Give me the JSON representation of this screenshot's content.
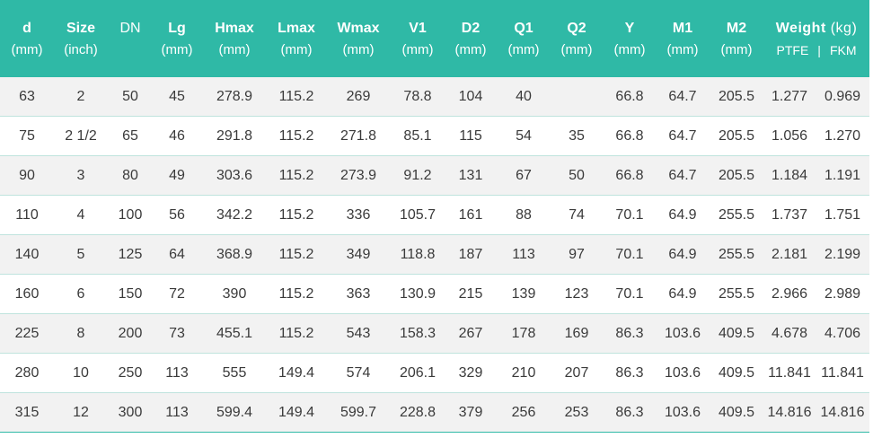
{
  "table": {
    "headers": [
      {
        "name": "d",
        "unit": "(mm)"
      },
      {
        "name": "Size",
        "unit": "(inch)"
      },
      {
        "name": "DN",
        "unit": ""
      },
      {
        "name": "Lg",
        "unit": "(mm)"
      },
      {
        "name": "Hmax",
        "unit": "(mm)"
      },
      {
        "name": "Lmax",
        "unit": "(mm)"
      },
      {
        "name": "Wmax",
        "unit": "(mm)"
      },
      {
        "name": "V1",
        "unit": "(mm)"
      },
      {
        "name": "D2",
        "unit": "(mm)"
      },
      {
        "name": "Q1",
        "unit": "(mm)"
      },
      {
        "name": "Q2",
        "unit": "(mm)"
      },
      {
        "name": "Y",
        "unit": "(mm)"
      },
      {
        "name": "M1",
        "unit": "(mm)"
      },
      {
        "name": "M2",
        "unit": "(mm)"
      }
    ],
    "weight_header": {
      "name": "Weight",
      "unit": "(kg)",
      "sub1": "PTFE",
      "separator": "|",
      "sub2": "FKM"
    },
    "rows": [
      [
        "63",
        "2",
        "50",
        "45",
        "278.9",
        "115.2",
        "269",
        "78.8",
        "104",
        "40",
        "",
        "66.8",
        "64.7",
        "205.5",
        "1.277",
        "0.969"
      ],
      [
        "75",
        "2 1/2",
        "65",
        "46",
        "291.8",
        "115.2",
        "271.8",
        "85.1",
        "115",
        "54",
        "35",
        "66.8",
        "64.7",
        "205.5",
        "1.056",
        "1.270"
      ],
      [
        "90",
        "3",
        "80",
        "49",
        "303.6",
        "115.2",
        "273.9",
        "91.2",
        "131",
        "67",
        "50",
        "66.8",
        "64.7",
        "205.5",
        "1.184",
        "1.191"
      ],
      [
        "110",
        "4",
        "100",
        "56",
        "342.2",
        "115.2",
        "336",
        "105.7",
        "161",
        "88",
        "74",
        "70.1",
        "64.9",
        "255.5",
        "1.737",
        "1.751"
      ],
      [
        "140",
        "5",
        "125",
        "64",
        "368.9",
        "115.2",
        "349",
        "118.8",
        "187",
        "113",
        "97",
        "70.1",
        "64.9",
        "255.5",
        "2.181",
        "2.199"
      ],
      [
        "160",
        "6",
        "150",
        "72",
        "390",
        "115.2",
        "363",
        "130.9",
        "215",
        "139",
        "123",
        "70.1",
        "64.9",
        "255.5",
        "2.966",
        "2.989"
      ],
      [
        "225",
        "8",
        "200",
        "73",
        "455.1",
        "115.2",
        "543",
        "158.3",
        "267",
        "178",
        "169",
        "86.3",
        "103.6",
        "409.5",
        "4.678",
        "4.706"
      ],
      [
        "280",
        "10",
        "250",
        "113",
        "555",
        "149.4",
        "574",
        "206.1",
        "329",
        "210",
        "207",
        "86.3",
        "103.6",
        "409.5",
        "11.841",
        "11.841"
      ],
      [
        "315",
        "12",
        "300",
        "113",
        "599.4",
        "149.4",
        "599.7",
        "228.8",
        "379",
        "256",
        "253",
        "86.3",
        "103.6",
        "409.5",
        "14.816",
        "14.816"
      ]
    ]
  },
  "colors": {
    "header_bg": "#2fb9a6",
    "header_text": "#ffffff",
    "row_alt_bg": "#f2f2f2",
    "body_text": "#3a3a3a"
  }
}
